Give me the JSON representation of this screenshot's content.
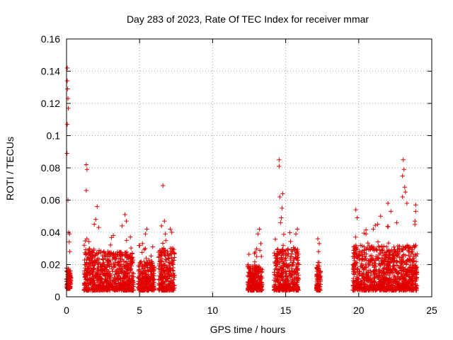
{
  "chart_data": {
    "type": "scatter",
    "title": "Day 283 of 2023, Rate Of TEC Index for receiver mmar",
    "xlabel": "GPS time / hours",
    "ylabel": "ROTI / TECUs",
    "xlim": [
      0,
      25
    ],
    "ylim": [
      0,
      0.16
    ],
    "xticks": [
      0,
      5,
      10,
      15,
      20,
      25
    ],
    "xtick_labels": [
      "0",
      "5",
      "10",
      "15",
      "20",
      "25"
    ],
    "yticks": [
      0,
      0.02,
      0.04,
      0.06,
      0.08,
      0.1,
      0.12,
      0.14,
      0.16
    ],
    "ytick_labels": [
      "0",
      "0.02",
      "0.04",
      "0.06",
      "0.08",
      "0.1",
      "0.12",
      "0.14",
      "0.16"
    ],
    "grid": true,
    "marker": "plus",
    "color": "#e00000",
    "clusters": [
      {
        "x_range": [
          0.0,
          0.3
        ],
        "y_typical": [
          0.005,
          0.018
        ],
        "outliers": [
          [
            0.05,
            0.142
          ],
          [
            0.05,
            0.134
          ],
          [
            0.08,
            0.129
          ],
          [
            0.1,
            0.123
          ],
          [
            0.12,
            0.117
          ],
          [
            0.05,
            0.107
          ],
          [
            0.03,
            0.089
          ],
          [
            0.1,
            0.06
          ],
          [
            0.15,
            0.04
          ],
          [
            0.2,
            0.039
          ],
          [
            0.18,
            0.034
          ],
          [
            0.22,
            0.028
          ]
        ]
      },
      {
        "x_range": [
          1.2,
          2.6
        ],
        "y_typical": [
          0.004,
          0.03
        ],
        "outliers": [
          [
            1.35,
            0.082
          ],
          [
            1.4,
            0.079
          ],
          [
            1.35,
            0.066
          ],
          [
            2.1,
            0.056
          ],
          [
            2.0,
            0.048
          ],
          [
            1.9,
            0.045
          ],
          [
            2.2,
            0.043
          ]
        ]
      },
      {
        "x_range": [
          2.6,
          4.6
        ],
        "y_typical": [
          0.004,
          0.028
        ],
        "outliers": [
          [
            4.0,
            0.051
          ],
          [
            4.1,
            0.047
          ],
          [
            3.8,
            0.044
          ],
          [
            3.2,
            0.038
          ]
        ]
      },
      {
        "x_range": [
          4.9,
          6.0
        ],
        "y_typical": [
          0.004,
          0.022
        ],
        "outliers": [
          [
            5.5,
            0.042
          ],
          [
            5.4,
            0.039
          ],
          [
            5.9,
            0.031
          ],
          [
            5.2,
            0.033
          ]
        ]
      },
      {
        "x_range": [
          6.3,
          7.4
        ],
        "y_typical": [
          0.004,
          0.03
        ],
        "outliers": [
          [
            6.6,
            0.069
          ],
          [
            6.7,
            0.047
          ],
          [
            6.5,
            0.044
          ],
          [
            7.1,
            0.042
          ],
          [
            7.2,
            0.04
          ]
        ]
      },
      {
        "x_range": [
          12.4,
          13.4
        ],
        "y_typical": [
          0.004,
          0.02
        ],
        "outliers": [
          [
            13.2,
            0.042
          ],
          [
            13.1,
            0.039
          ],
          [
            13.3,
            0.033
          ]
        ]
      },
      {
        "x_range": [
          14.2,
          15.9
        ],
        "y_typical": [
          0.004,
          0.03
        ],
        "outliers": [
          [
            14.55,
            0.085
          ],
          [
            14.55,
            0.081
          ],
          [
            14.8,
            0.064
          ],
          [
            14.6,
            0.062
          ],
          [
            14.75,
            0.055
          ],
          [
            14.7,
            0.049
          ],
          [
            14.65,
            0.046
          ],
          [
            15.8,
            0.042
          ],
          [
            15.7,
            0.039
          ]
        ]
      },
      {
        "x_range": [
          17.1,
          17.4
        ],
        "y_typical": [
          0.004,
          0.02
        ],
        "outliers": [
          [
            17.2,
            0.036
          ],
          [
            17.3,
            0.033
          ],
          [
            17.25,
            0.028
          ]
        ]
      },
      {
        "x_range": [
          19.6,
          24.0
        ],
        "y_typical": [
          0.004,
          0.032
        ],
        "outliers": [
          [
            23.05,
            0.085
          ],
          [
            23.1,
            0.079
          ],
          [
            23.0,
            0.075
          ],
          [
            23.15,
            0.068
          ],
          [
            23.2,
            0.065
          ],
          [
            23.0,
            0.062
          ],
          [
            23.3,
            0.058
          ],
          [
            22.0,
            0.058
          ],
          [
            22.2,
            0.053
          ],
          [
            19.8,
            0.054
          ],
          [
            19.9,
            0.049
          ],
          [
            23.9,
            0.057
          ],
          [
            23.9,
            0.053
          ],
          [
            23.85,
            0.047
          ],
          [
            21.5,
            0.05
          ],
          [
            21.3,
            0.045
          ],
          [
            22.6,
            0.046
          ],
          [
            20.5,
            0.039
          ],
          [
            21.0,
            0.042
          ]
        ]
      }
    ]
  }
}
